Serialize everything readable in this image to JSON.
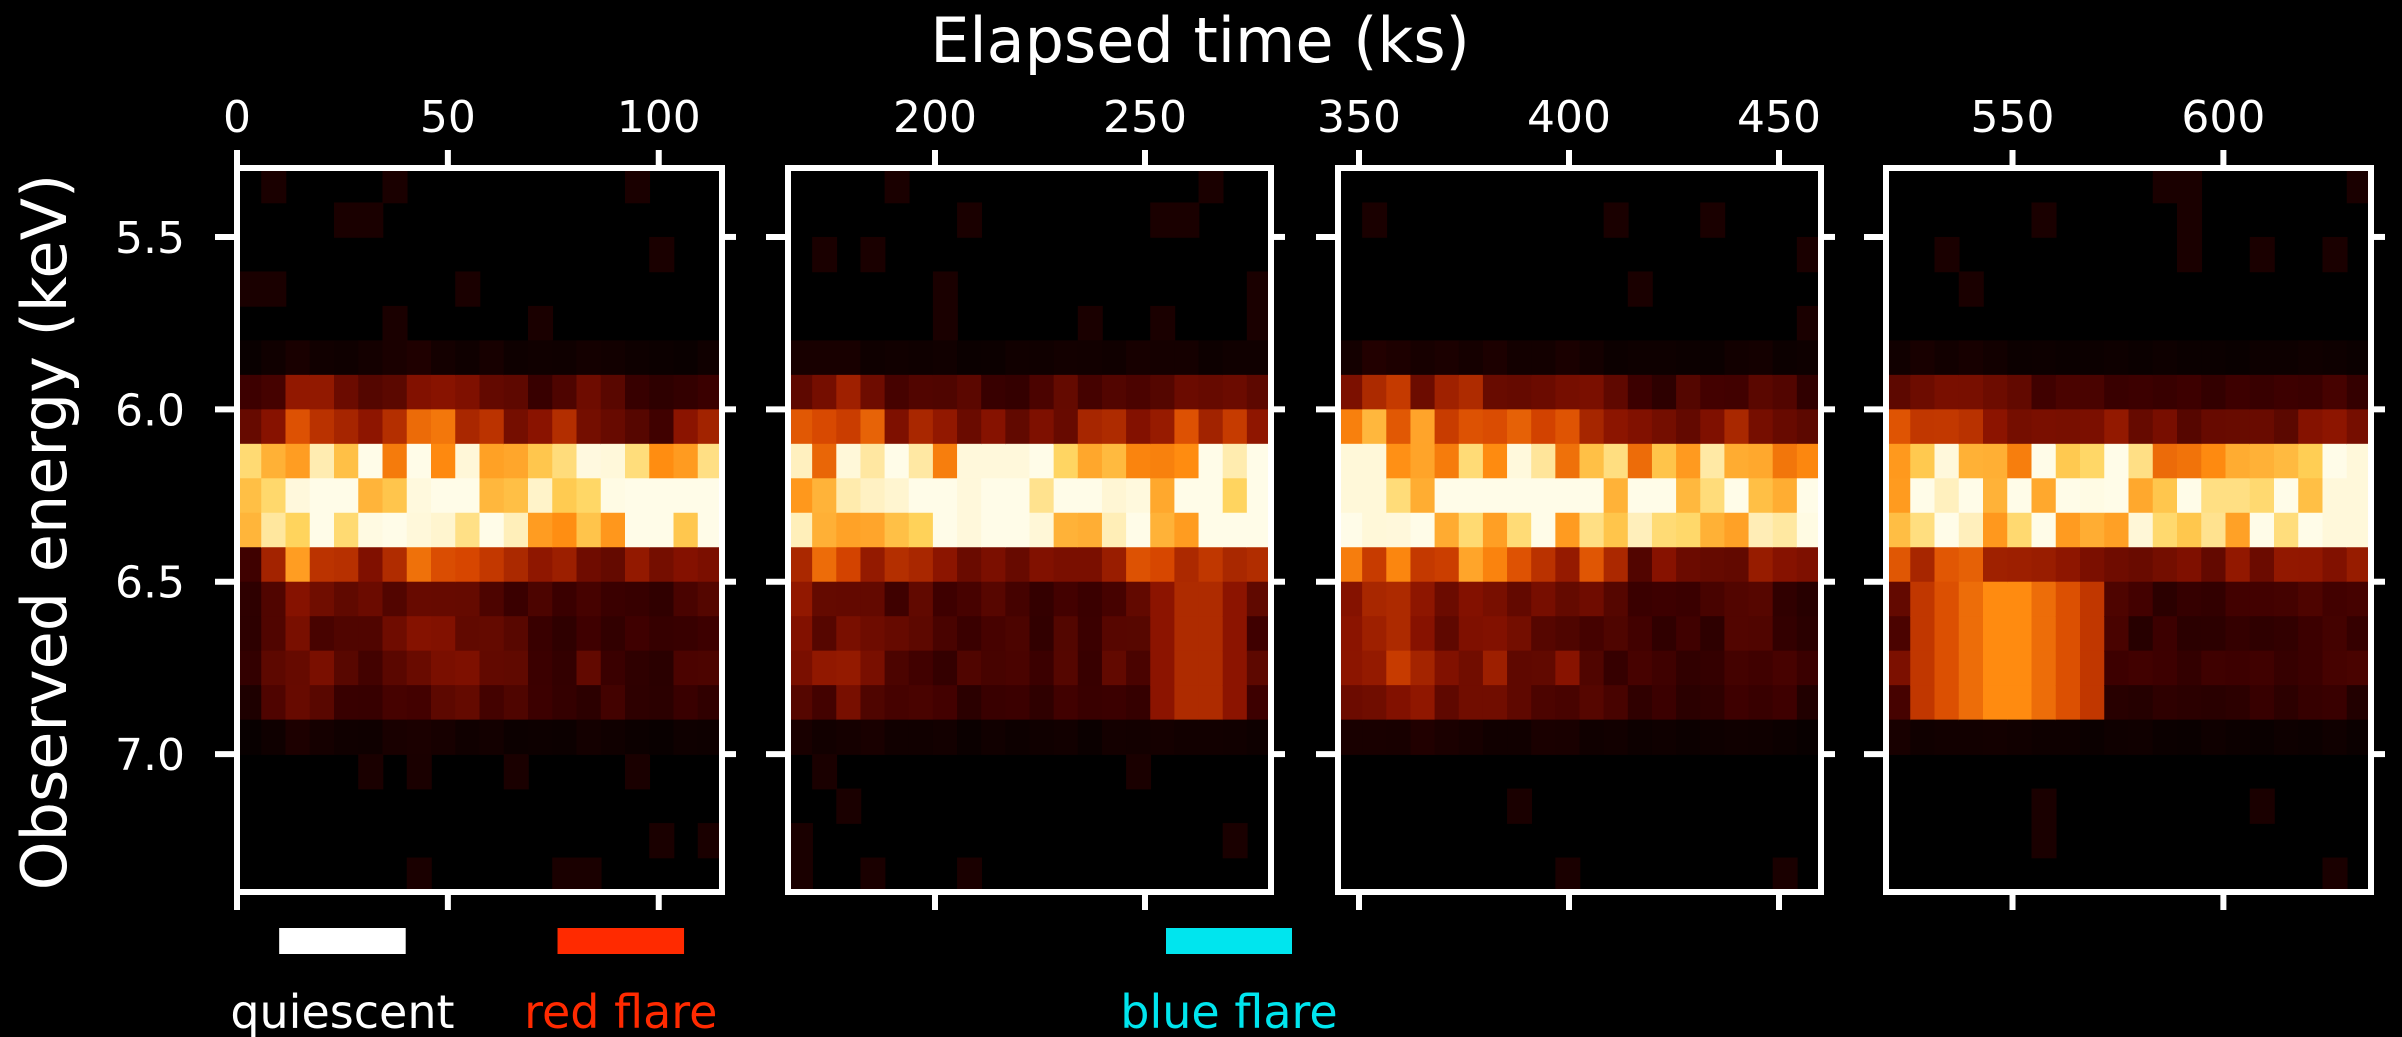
{
  "chart_data": {
    "type": "heatmap",
    "title": "",
    "xlabel": "Elapsed time (ks)",
    "ylabel": "Observed energy (keV)",
    "ylim": [
      7.4,
      5.3
    ],
    "ytick_values": [
      5.5,
      6.0,
      6.5,
      7.0
    ],
    "ytick_labels": [
      "5.5",
      "6.0",
      "6.5",
      "7.0"
    ],
    "colormap": [
      "#000000",
      "#3d0000",
      "#8a1300",
      "#d64500",
      "#ff8c10",
      "#ffd35a",
      "#fffce8"
    ],
    "panels": [
      {
        "xlim": [
          0,
          115
        ],
        "xtick_values": [
          0,
          50,
          100
        ],
        "xtick_labels": [
          "0",
          "50",
          "100"
        ],
        "bins": 20,
        "sharp": [],
        "blob": [],
        "hot": [
          [
            0.06,
            0.25
          ],
          [
            1.0,
            1.0
          ],
          [
            0.82,
            0.6
          ],
          [
            1.2,
            0.95
          ],
          [
            0.9,
            0.75
          ],
          [
            1.05,
            0.55
          ],
          [
            1.35,
            0.65
          ],
          [
            1.7,
            0.4
          ],
          [
            1.55,
            0.6
          ]
        ]
      },
      {
        "xlim": [
          165,
          280
        ],
        "xtick_values": [
          200,
          250
        ],
        "xtick_labels": [
          "200",
          "250"
        ],
        "bins": 20,
        "sharp": [
          [
            0.42,
            0.5
          ]
        ],
        "blob": [
          [
            0.85,
            0.12,
            0.08,
            0.45
          ]
        ],
        "hot": [
          [
            0.0,
            0.9
          ],
          [
            0.95,
            0.9
          ],
          [
            1.05,
            0.65
          ],
          [
            0.8,
            0.55
          ],
          [
            1.25,
            0.55
          ],
          [
            0.6,
            0.6
          ],
          [
            1.1,
            0.75
          ],
          [
            1.4,
            0.7
          ],
          [
            1.8,
            0.6
          ]
        ]
      },
      {
        "xlim": [
          345,
          460
        ],
        "xtick_values": [
          350,
          400,
          450
        ],
        "xtick_labels": [
          "350",
          "400",
          "450"
        ],
        "bins": 20,
        "sharp": [
          [
            0.05,
            0.4
          ]
        ],
        "blob": [
          [
            0.3,
            0.15,
            0.1,
            0.3
          ]
        ],
        "hot": [
          [
            0.4,
            0.95
          ],
          [
            1.0,
            1.15
          ],
          [
            0.75,
            1.0
          ],
          [
            0.8,
            0.9
          ],
          [
            0.85,
            0.8
          ],
          [
            0.55,
            0.5
          ],
          [
            0.55,
            0.5
          ],
          [
            0.45,
            0.6
          ],
          [
            0.4,
            0.4
          ]
        ]
      },
      {
        "xlim": [
          520,
          635
        ],
        "xtick_values": [
          550,
          600
        ],
        "xtick_labels": [
          "550",
          "600"
        ],
        "bins": 20,
        "sharp": [
          [
            0.96,
            0.45
          ]
        ],
        "blob": [
          [
            0.25,
            0.2,
            0.06,
            0.7
          ]
        ],
        "hot": [
          [
            0.3,
            0.75
          ],
          [
            1.0,
            0.85
          ],
          [
            0.95,
            0.7
          ],
          [
            0.95,
            0.5
          ],
          [
            0.8,
            0.5
          ],
          [
            0.75,
            0.45
          ],
          [
            0.7,
            0.5
          ],
          [
            0.65,
            0.5
          ],
          [
            0.55,
            0.5
          ]
        ]
      }
    ],
    "intervals": [
      {
        "name": "quiescent",
        "panel": 0,
        "start": 10,
        "end": 40,
        "color": "#ffffff"
      },
      {
        "name": "red flare",
        "panel": 0,
        "start": 76,
        "end": 106,
        "color": "#ff2a00"
      },
      {
        "name": "blue flare",
        "panel": 1,
        "start": 255,
        "end": 285,
        "color": "#00e5ee"
      }
    ]
  }
}
